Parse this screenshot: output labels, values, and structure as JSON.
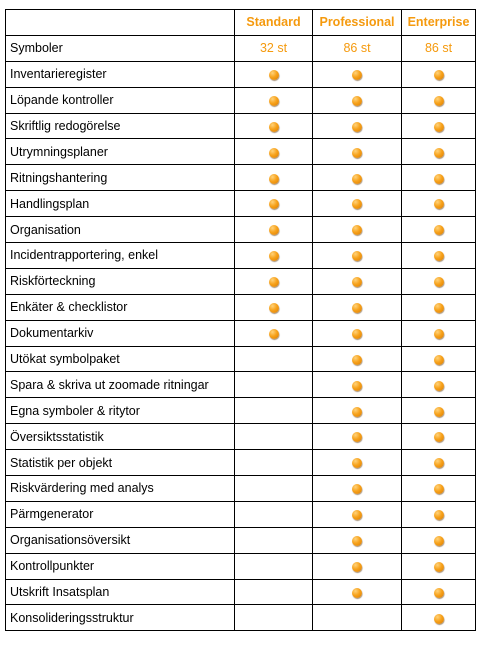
{
  "colors": {
    "accent": "#F59A0E",
    "border": "#000000",
    "text": "#000000"
  },
  "header": {
    "plans": [
      "Standard",
      "Professional",
      "Enterprise"
    ]
  },
  "symbols_row": {
    "label": "Symboler",
    "values": [
      "32 st",
      "86 st",
      "86 st"
    ]
  },
  "icon": "orange-dot-icon",
  "features": [
    {
      "label": "Inventarieregister",
      "standard": true,
      "professional": true,
      "enterprise": true
    },
    {
      "label": "Löpande kontroller",
      "standard": true,
      "professional": true,
      "enterprise": true
    },
    {
      "label": "Skriftlig redogörelse",
      "standard": true,
      "professional": true,
      "enterprise": true
    },
    {
      "label": "Utrymningsplaner",
      "standard": true,
      "professional": true,
      "enterprise": true
    },
    {
      "label": "Ritningshantering",
      "standard": true,
      "professional": true,
      "enterprise": true
    },
    {
      "label": "Handlingsplan",
      "standard": true,
      "professional": true,
      "enterprise": true
    },
    {
      "label": "Organisation",
      "standard": true,
      "professional": true,
      "enterprise": true
    },
    {
      "label": "Incidentrapportering, enkel",
      "standard": true,
      "professional": true,
      "enterprise": true
    },
    {
      "label": "Riskförteckning",
      "standard": true,
      "professional": true,
      "enterprise": true
    },
    {
      "label": "Enkäter & checklistor",
      "standard": true,
      "professional": true,
      "enterprise": true
    },
    {
      "label": "Dokumentarkiv",
      "standard": true,
      "professional": true,
      "enterprise": true
    },
    {
      "label": "Utökat symbolpaket",
      "standard": false,
      "professional": true,
      "enterprise": true
    },
    {
      "label": "Spara & skriva ut zoomade ritningar",
      "standard": false,
      "professional": true,
      "enterprise": true
    },
    {
      "label": "Egna symboler & ritytor",
      "standard": false,
      "professional": true,
      "enterprise": true
    },
    {
      "label": "Översiktsstatistik",
      "standard": false,
      "professional": true,
      "enterprise": true
    },
    {
      "label": "Statistik per objekt",
      "standard": false,
      "professional": true,
      "enterprise": true
    },
    {
      "label": "Riskvärdering med analys",
      "standard": false,
      "professional": true,
      "enterprise": true
    },
    {
      "label": "Pärmgenerator",
      "standard": false,
      "professional": true,
      "enterprise": true
    },
    {
      "label": "Organisationsöversikt",
      "standard": false,
      "professional": true,
      "enterprise": true
    },
    {
      "label": "Kontrollpunkter",
      "standard": false,
      "professional": true,
      "enterprise": true
    },
    {
      "label": "Utskrift Insatsplan",
      "standard": false,
      "professional": true,
      "enterprise": true
    },
    {
      "label": "Konsolideringsstruktur",
      "standard": false,
      "professional": false,
      "enterprise": true
    }
  ]
}
